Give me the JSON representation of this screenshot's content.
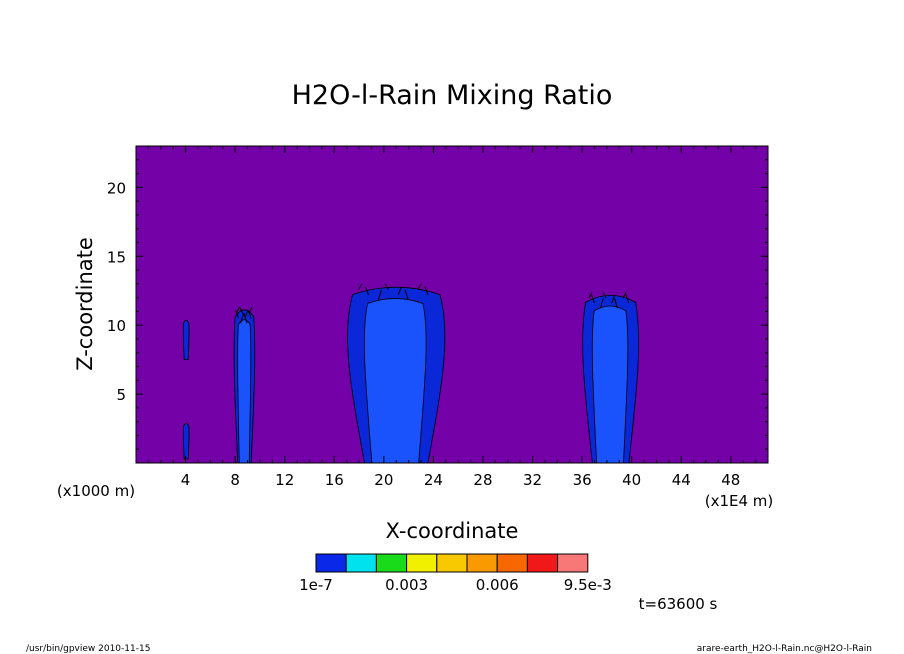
{
  "chart_data": {
    "type": "contour",
    "title": "H2O-l-Rain Mixing Ratio",
    "xlabel": "X-coordinate",
    "ylabel": "Z-coordinate",
    "x_unit_left": "(x1000 m)",
    "x_unit_right": "(x1E4 m)",
    "x_ticks": [
      "4",
      "8",
      "12",
      "16",
      "20",
      "24",
      "28",
      "32",
      "36",
      "40",
      "44",
      "48"
    ],
    "x_tick_values": [
      4,
      8,
      12,
      16,
      20,
      24,
      28,
      32,
      36,
      40,
      44,
      48
    ],
    "xlim": [
      0,
      51
    ],
    "y_ticks": [
      "5",
      "10",
      "15",
      "20"
    ],
    "y_tick_values": [
      5,
      10,
      15,
      20
    ],
    "ylim": [
      0,
      23
    ],
    "background_color": "#7400a8",
    "outer_contour_color": "#0a28d8",
    "inner_contour_color": "#1a52fb",
    "clouds": [
      {
        "x_range": [
          3.8,
          4.3
        ],
        "z_range": [
          7.5,
          10.3
        ]
      },
      {
        "x_range": [
          3.8,
          4.3
        ],
        "z_range": [
          0.3,
          2.8
        ]
      },
      {
        "x_range": [
          7.9,
          9.6
        ],
        "z_range": [
          0,
          11.3
        ]
      },
      {
        "x_range": [
          17.0,
          25.0
        ],
        "z_range": [
          0,
          13.0
        ]
      },
      {
        "x_range": [
          36.0,
          40.6
        ],
        "z_range": [
          0,
          12.4
        ]
      }
    ],
    "legend": {
      "colors": [
        "#0a28e8",
        "#00e2ee",
        "#19db19",
        "#f0f000",
        "#f8c800",
        "#f89a00",
        "#f86800",
        "#f01818",
        "#f87878"
      ],
      "labels": [
        "1e-7",
        "0.003",
        "0.006",
        "9.5e-3"
      ]
    },
    "time_label": "t=63600 s",
    "footer_left": "/usr/bin/gpview  2010-11-15",
    "footer_right": "arare-earth_H2O-l-Rain.nc@H2O-l-Rain"
  }
}
